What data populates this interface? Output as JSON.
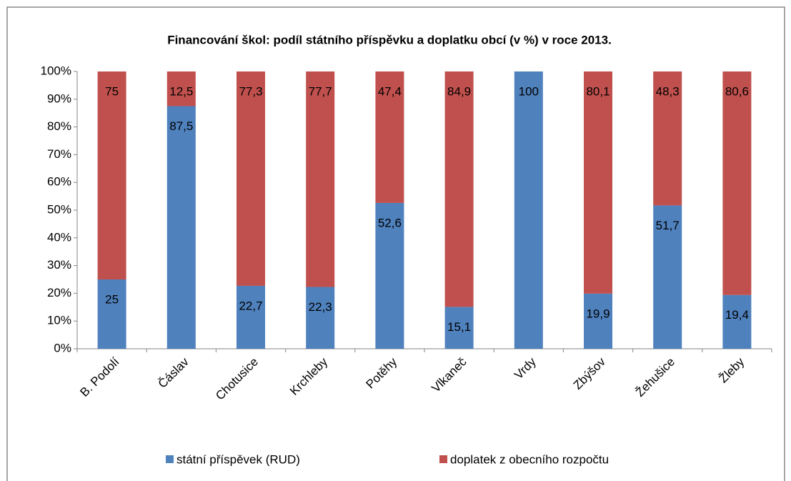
{
  "chart_data": {
    "type": "stacked_bar",
    "title": "Financování škol: podíl státního příspěvku a doplatku obcí (v %) v roce 2013.",
    "categories": [
      "B. Podolí",
      "Čáslav",
      "Chotusice",
      "Krchleby",
      "Potěhy",
      "Vlkaneč",
      "Vrdy",
      "Zbýšov",
      "Žehušice",
      "Žleby"
    ],
    "series": [
      {
        "name": "státní příspěvek (RUD)",
        "color": "#4f81bd",
        "values": [
          25,
          87.5,
          22.7,
          22.3,
          52.6,
          15.1,
          100,
          19.9,
          51.7,
          19.4
        ],
        "value_labels": [
          "25",
          "87,5",
          "22,7",
          "22,3",
          "52,6",
          "15,1",
          "100",
          "19,9",
          "51,7",
          "19,4"
        ]
      },
      {
        "name": "doplatek z obecního rozpočtu",
        "color": "#c0504d",
        "values": [
          75,
          12.5,
          77.3,
          77.7,
          47.4,
          84.9,
          0,
          80.1,
          48.3,
          80.6
        ],
        "value_labels": [
          "75",
          "12,5",
          "77,3",
          "77,7",
          "47,4",
          "84,9",
          null,
          "80,1",
          "48,3",
          "80,6"
        ]
      }
    ],
    "ylim": [
      0,
      100
    ],
    "yticks": [
      {
        "value": 0,
        "label": "0%"
      },
      {
        "value": 10,
        "label": "10%"
      },
      {
        "value": 20,
        "label": "20%"
      },
      {
        "value": 30,
        "label": "30%"
      },
      {
        "value": 40,
        "label": "40%"
      },
      {
        "value": 50,
        "label": "50%"
      },
      {
        "value": 60,
        "label": "60%"
      },
      {
        "value": 70,
        "label": "70%"
      },
      {
        "value": 80,
        "label": "80%"
      },
      {
        "value": 90,
        "label": "90%"
      },
      {
        "value": 100,
        "label": "100%"
      }
    ],
    "grid": false,
    "legend": "bottom"
  }
}
